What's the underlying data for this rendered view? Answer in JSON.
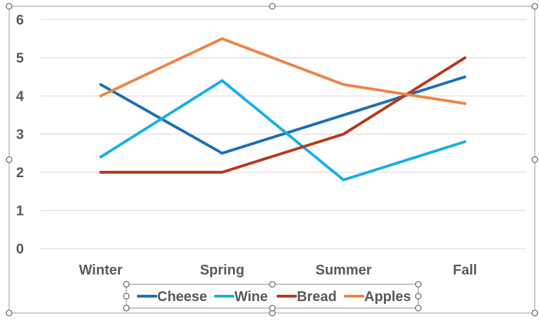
{
  "chart_data": {
    "type": "line",
    "categories": [
      "Winter",
      "Spring",
      "Summer",
      "Fall"
    ],
    "series": [
      {
        "name": "Cheese",
        "values": [
          4.3,
          2.5,
          3.5,
          4.5
        ],
        "color": "#1f6fb4"
      },
      {
        "name": "Wine",
        "values": [
          2.4,
          4.4,
          1.8,
          2.8
        ],
        "color": "#1aaee8"
      },
      {
        "name": "Bread",
        "values": [
          2.0,
          2.0,
          3.0,
          5.0
        ],
        "color": "#b8381b"
      },
      {
        "name": "Apples",
        "values": [
          4.0,
          5.5,
          4.3,
          3.8
        ],
        "color": "#ee8447"
      }
    ],
    "ylim": [
      0,
      6
    ],
    "yticks": [
      0,
      1,
      2,
      3,
      4,
      5,
      6
    ],
    "grid": true,
    "legend_position": "bottom",
    "title": "",
    "xlabel": "",
    "ylabel": ""
  }
}
